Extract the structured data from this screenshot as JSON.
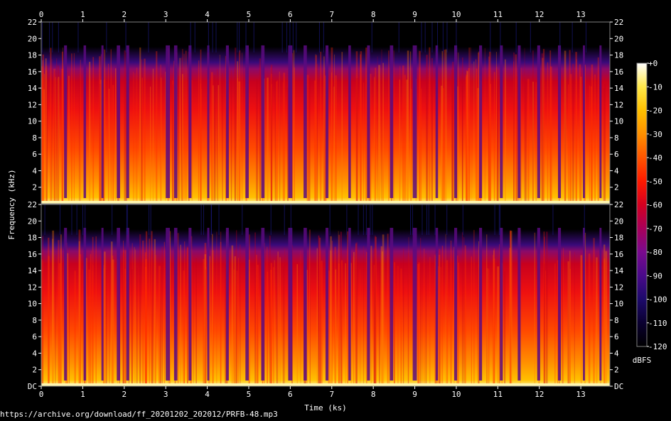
{
  "chart_data": {
    "type": "heatmap",
    "subtype": "spectrogram",
    "channels": 2,
    "xlabel": "Time (ks)",
    "ylabel": "Frequency (kHz)",
    "x_ticks": [
      "0",
      "1",
      "2",
      "3",
      "4",
      "5",
      "6",
      "7",
      "8",
      "9",
      "10",
      "11",
      "12",
      "13"
    ],
    "xlim": [
      0,
      13.7
    ],
    "y_ticks_top": [
      "2",
      "4",
      "6",
      "8",
      "10",
      "12",
      "14",
      "16",
      "18",
      "20",
      "22"
    ],
    "y_ticks_bottom": [
      "DC",
      "2",
      "4",
      "6",
      "8",
      "10",
      "12",
      "14",
      "16",
      "18",
      "20",
      "22"
    ],
    "ylim": [
      0,
      22
    ],
    "lowpass_cutoff_khz": 19,
    "colorbar": {
      "label": "dBFS",
      "ticks": [
        "+0",
        "-10",
        "-20",
        "-30",
        "-40",
        "-50",
        "-60",
        "-70",
        "-80",
        "-90",
        "-100",
        "-110",
        "-120"
      ],
      "range": [
        -120,
        0
      ],
      "colors": [
        "#000000",
        "#0a0030",
        "#1d0a6b",
        "#4a0a8a",
        "#7a0a8f",
        "#a8005a",
        "#d40020",
        "#ff1a00",
        "#ff5500",
        "#ff9000",
        "#ffc000",
        "#ffe84a",
        "#ffffff"
      ]
    },
    "gaps_ks": [
      [
        0.55,
        0.62
      ],
      [
        1.02,
        1.08
      ],
      [
        1.45,
        1.5
      ],
      [
        1.82,
        1.9
      ],
      [
        2.05,
        2.12
      ],
      [
        3.0,
        3.1
      ],
      [
        3.2,
        3.28
      ],
      [
        3.55,
        3.62
      ],
      [
        4.0,
        4.05
      ],
      [
        4.45,
        4.52
      ],
      [
        4.92,
        5.0
      ],
      [
        5.3,
        5.38
      ],
      [
        5.95,
        6.05
      ],
      [
        6.32,
        6.4
      ],
      [
        6.85,
        6.92
      ],
      [
        7.4,
        7.46
      ],
      [
        7.85,
        7.92
      ],
      [
        8.4,
        8.48
      ],
      [
        8.95,
        9.05
      ],
      [
        9.5,
        9.56
      ],
      [
        9.95,
        10.02
      ],
      [
        10.55,
        10.62
      ],
      [
        11.05,
        11.12
      ],
      [
        11.48,
        11.55
      ],
      [
        11.95,
        12.02
      ],
      [
        12.45,
        12.52
      ],
      [
        13.05,
        13.1
      ],
      [
        13.45,
        13.5
      ]
    ]
  },
  "source_url": "https://archive.org/download/ff_20201202_202012/PRFB-48.mp3"
}
